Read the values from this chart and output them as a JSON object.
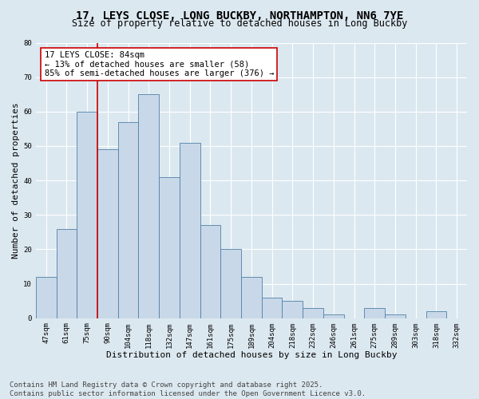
{
  "title": "17, LEYS CLOSE, LONG BUCKBY, NORTHAMPTON, NN6 7YE",
  "subtitle": "Size of property relative to detached houses in Long Buckby",
  "xlabel": "Distribution of detached houses by size in Long Buckby",
  "ylabel": "Number of detached properties",
  "footer_line1": "Contains HM Land Registry data © Crown copyright and database right 2025.",
  "footer_line2": "Contains public sector information licensed under the Open Government Licence v3.0.",
  "categories": [
    "47sqm",
    "61sqm",
    "75sqm",
    "90sqm",
    "104sqm",
    "118sqm",
    "132sqm",
    "147sqm",
    "161sqm",
    "175sqm",
    "189sqm",
    "204sqm",
    "218sqm",
    "232sqm",
    "246sqm",
    "261sqm",
    "275sqm",
    "289sqm",
    "303sqm",
    "318sqm",
    "332sqm"
  ],
  "values": [
    12,
    26,
    60,
    49,
    57,
    65,
    41,
    51,
    27,
    20,
    12,
    6,
    5,
    3,
    1,
    0,
    3,
    1,
    0,
    2,
    0
  ],
  "bar_color": "#c8d8e8",
  "bar_edge_color": "#5080a8",
  "vline_color": "#cc0000",
  "annotation_text": "17 LEYS CLOSE: 84sqm\n← 13% of detached houses are smaller (58)\n85% of semi-detached houses are larger (376) →",
  "annotation_box_facecolor": "#ffffff",
  "annotation_box_edgecolor": "#cc0000",
  "ylim": [
    0,
    80
  ],
  "yticks": [
    0,
    10,
    20,
    30,
    40,
    50,
    60,
    70,
    80
  ],
  "bg_color": "#dce8f0",
  "plot_bg_color": "#dce8f0",
  "grid_color": "#ffffff",
  "title_fontsize": 10,
  "subtitle_fontsize": 8.5,
  "xlabel_fontsize": 8,
  "ylabel_fontsize": 8,
  "footer_fontsize": 6.5,
  "tick_fontsize": 6.5,
  "annot_fontsize": 7.5
}
